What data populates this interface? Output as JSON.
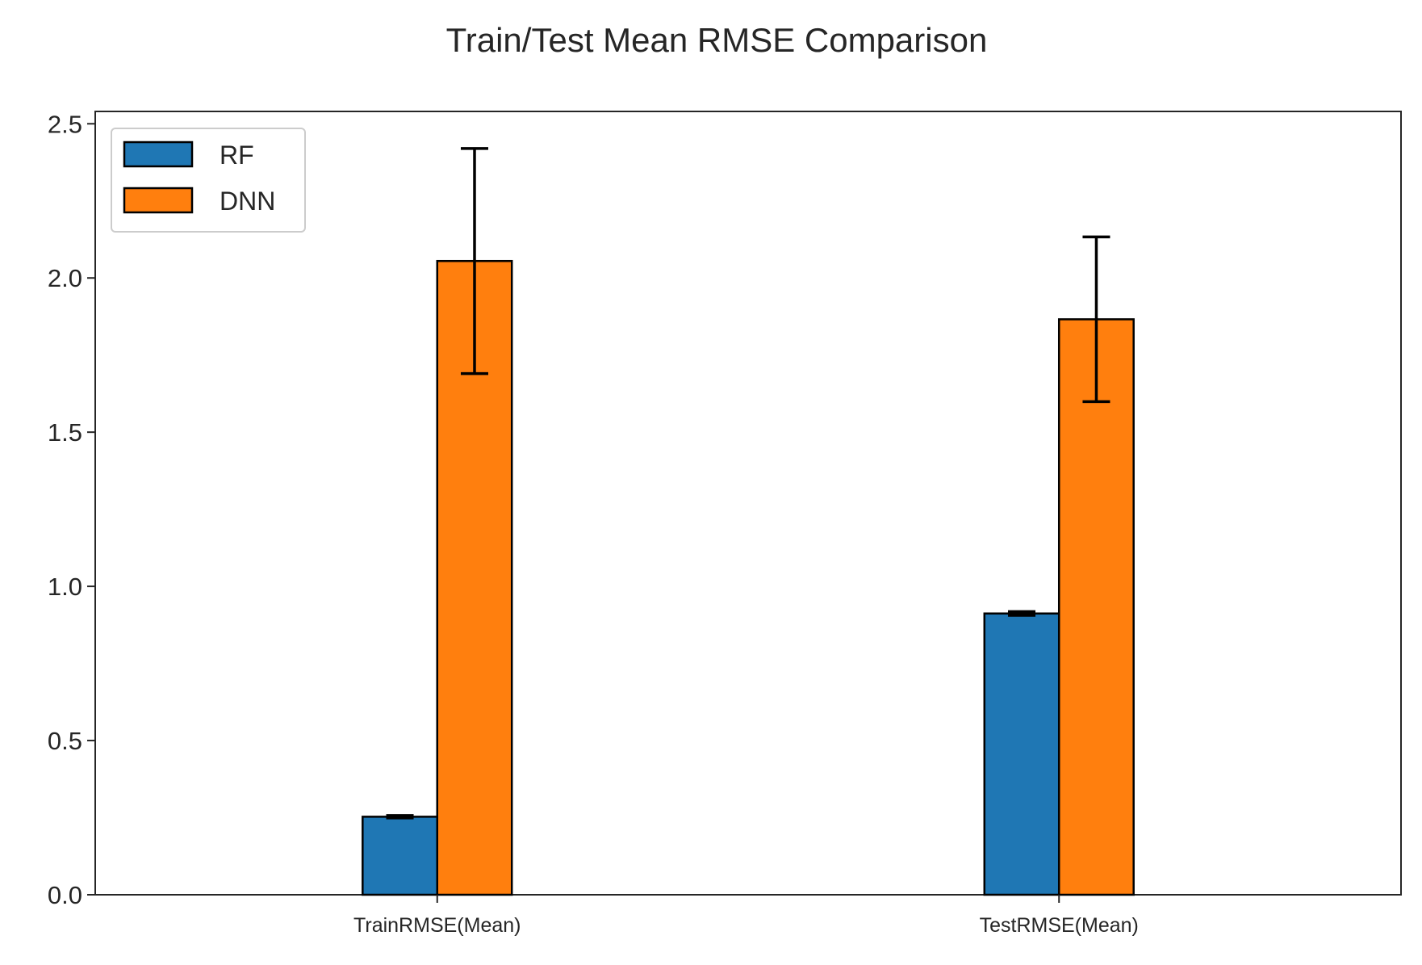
{
  "chart_data": {
    "type": "bar",
    "title": "Train/Test Mean RMSE Comparison",
    "xlabel": "",
    "ylabel": "",
    "categories": [
      "TrainRMSE(Mean)",
      "TestRMSE(Mean)"
    ],
    "series": [
      {
        "name": "RF",
        "values": [
          0.253,
          0.912
        ],
        "errors": [
          0.004,
          0.006
        ],
        "color": "#1f77b4"
      },
      {
        "name": "DNN",
        "values": [
          2.055,
          1.866
        ],
        "errors": [
          0.365,
          0.267
        ],
        "color": "#ff7f0e"
      }
    ],
    "ylim": [
      0,
      2.54
    ],
    "yticks": [
      0.0,
      0.5,
      1.0,
      1.5,
      2.0,
      2.5
    ],
    "ytick_labels": [
      "0.0",
      "0.5",
      "1.0",
      "1.5",
      "2.0",
      "2.5"
    ],
    "grid": false,
    "legend_position": "top-left",
    "bar_edge_color": "#000000",
    "error_bar_color": "#000000",
    "axes_color": "#262626"
  }
}
